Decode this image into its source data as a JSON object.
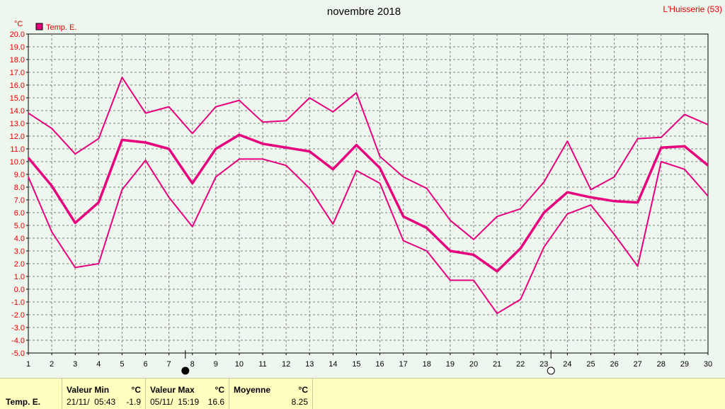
{
  "header": {
    "title": "novembre 2018",
    "station": "L'Huisserie (53)"
  },
  "colors": {
    "series": "#e6007e",
    "background": "#eef7ee",
    "footer": "#ffffc0",
    "grid": "#7f7f7f"
  },
  "chart_data": {
    "type": "line",
    "unit": "°C",
    "legend": "Temp. E.",
    "x": [
      1,
      2,
      3,
      4,
      5,
      6,
      7,
      8,
      9,
      10,
      11,
      12,
      13,
      14,
      15,
      16,
      17,
      18,
      19,
      20,
      21,
      22,
      23,
      24,
      25,
      26,
      27,
      28,
      29,
      30
    ],
    "xlim": [
      1,
      30
    ],
    "ylim": [
      -5,
      20
    ],
    "ytick_step": 1,
    "grid": true,
    "series": [
      {
        "role": "max",
        "values": [
          13.8,
          12.6,
          10.6,
          11.8,
          16.6,
          13.8,
          14.3,
          12.2,
          14.3,
          14.8,
          13.1,
          13.2,
          15.0,
          13.9,
          15.4,
          10.4,
          8.8,
          7.9,
          5.4,
          3.9,
          5.7,
          6.3,
          8.4,
          11.6,
          7.8,
          8.8,
          11.8,
          11.9,
          13.7,
          12.9
        ],
        "width": 2
      },
      {
        "role": "mean",
        "values": [
          10.3,
          8.1,
          5.2,
          6.8,
          11.7,
          11.5,
          11.0,
          8.3,
          11.0,
          12.1,
          11.4,
          11.1,
          10.8,
          9.4,
          11.3,
          9.5,
          5.7,
          4.8,
          3.0,
          2.7,
          1.4,
          3.2,
          6.0,
          7.6,
          7.2,
          6.9,
          6.8,
          11.1,
          11.2,
          9.7
        ],
        "width": 3.5
      },
      {
        "role": "min",
        "values": [
          8.8,
          4.5,
          1.7,
          2.0,
          7.8,
          10.1,
          7.2,
          4.9,
          8.8,
          10.2,
          10.2,
          9.7,
          7.9,
          5.1,
          9.3,
          8.3,
          3.8,
          3.0,
          0.7,
          0.7,
          -1.9,
          -0.8,
          3.3,
          5.9,
          6.6,
          4.3,
          1.8,
          10.0,
          9.4,
          7.3
        ],
        "width": 2
      }
    ],
    "markers": [
      {
        "symbol": "full-moon",
        "x": 7.7,
        "fill": "#000000"
      },
      {
        "symbol": "new-moon",
        "x": 23.3,
        "fill": "#ffffff"
      }
    ]
  },
  "footer": {
    "series_label": "Temp. E.",
    "min": {
      "heading": "Valeur Min",
      "unit": "°C",
      "datetime": "21/11/  05:43",
      "value": "-1.9"
    },
    "max": {
      "heading": "Valeur Max",
      "unit": "°C",
      "datetime": "05/11/  15:19",
      "value": "16.6"
    },
    "mean": {
      "heading": "Moyenne",
      "unit": "°C",
      "value": "8.25"
    }
  }
}
